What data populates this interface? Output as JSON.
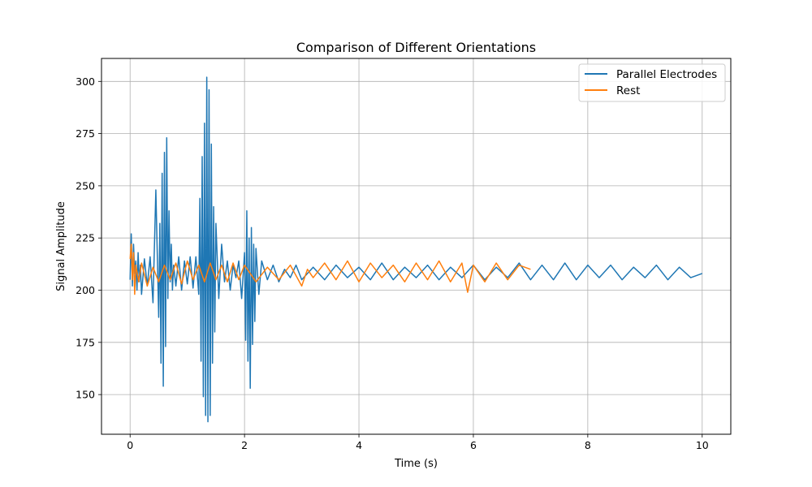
{
  "chart_data": {
    "type": "line",
    "title": "Comparison of Different Orientations",
    "xlabel": "Time (s)",
    "ylabel": "Signal Amplitude",
    "xlim": [
      -0.5,
      10.5
    ],
    "ylim": [
      131,
      311
    ],
    "xticks": [
      0,
      2,
      4,
      6,
      8,
      10
    ],
    "yticks": [
      150,
      175,
      200,
      225,
      250,
      275,
      300
    ],
    "grid": true,
    "legend_position": "top-right",
    "series": [
      {
        "name": "Parallel Electrodes",
        "color": "#1f77b4",
        "x": [
          0.0,
          0.02,
          0.04,
          0.06,
          0.08,
          0.1,
          0.12,
          0.14,
          0.16,
          0.18,
          0.2,
          0.25,
          0.3,
          0.35,
          0.4,
          0.45,
          0.5,
          0.52,
          0.54,
          0.56,
          0.58,
          0.6,
          0.62,
          0.64,
          0.66,
          0.68,
          0.7,
          0.72,
          0.74,
          0.76,
          0.8,
          0.85,
          0.9,
          0.95,
          1.0,
          1.05,
          1.1,
          1.15,
          1.2,
          1.22,
          1.24,
          1.26,
          1.28,
          1.3,
          1.32,
          1.34,
          1.36,
          1.38,
          1.4,
          1.42,
          1.44,
          1.46,
          1.48,
          1.5,
          1.55,
          1.6,
          1.65,
          1.7,
          1.75,
          1.8,
          1.85,
          1.9,
          1.95,
          2.0,
          2.02,
          2.04,
          2.06,
          2.08,
          2.1,
          2.12,
          2.14,
          2.16,
          2.18,
          2.2,
          2.25,
          2.3,
          2.4,
          2.5,
          2.6,
          2.7,
          2.8,
          2.9,
          3.0,
          3.2,
          3.4,
          3.6,
          3.8,
          4.0,
          4.2,
          4.4,
          4.6,
          4.8,
          5.0,
          5.2,
          5.4,
          5.6,
          5.8,
          6.0,
          6.2,
          6.4,
          6.6,
          6.8,
          7.0,
          7.2,
          7.4,
          7.6,
          7.8,
          8.0,
          8.2,
          8.4,
          8.6,
          8.8,
          9.0,
          9.2,
          9.4,
          9.6,
          9.8,
          10.0
        ],
        "values": [
          205,
          227,
          202,
          222,
          208,
          214,
          200,
          218,
          204,
          212,
          198,
          215,
          202,
          216,
          194,
          248,
          187,
          232,
          165,
          256,
          154,
          266,
          173,
          273,
          196,
          238,
          204,
          222,
          200,
          212,
          202,
          216,
          200,
          214,
          203,
          216,
          201,
          216,
          198,
          244,
          166,
          264,
          149,
          280,
          140,
          302,
          137,
          296,
          140,
          270,
          165,
          240,
          180,
          232,
          196,
          222,
          204,
          214,
          200,
          212,
          206,
          214,
          196,
          218,
          176,
          238,
          166,
          225,
          153,
          230,
          174,
          222,
          185,
          220,
          198,
          214,
          205,
          212,
          204,
          210,
          206,
          212,
          205,
          211,
          205,
          212,
          206,
          211,
          205,
          213,
          205,
          211,
          206,
          212,
          205,
          211,
          206,
          212,
          205,
          211,
          206,
          213,
          205,
          212,
          205,
          213,
          205,
          212,
          206,
          212,
          205,
          211,
          206,
          212,
          205,
          211,
          206,
          208
        ]
      },
      {
        "name": "Rest",
        "color": "#ff7f0e",
        "x": [
          0.0,
          0.02,
          0.04,
          0.06,
          0.08,
          0.1,
          0.15,
          0.2,
          0.3,
          0.4,
          0.5,
          0.6,
          0.7,
          0.8,
          0.9,
          1.0,
          1.1,
          1.2,
          1.3,
          1.4,
          1.5,
          1.6,
          1.7,
          1.8,
          1.9,
          2.0,
          2.2,
          2.4,
          2.6,
          2.8,
          3.0,
          3.1,
          3.2,
          3.4,
          3.6,
          3.8,
          4.0,
          4.2,
          4.4,
          4.6,
          4.8,
          5.0,
          5.2,
          5.4,
          5.6,
          5.8,
          5.9,
          6.0,
          6.2,
          6.4,
          6.6,
          6.8,
          7.0
        ],
        "values": [
          215,
          222,
          205,
          218,
          198,
          212,
          204,
          213,
          202,
          211,
          204,
          212,
          205,
          213,
          203,
          214,
          205,
          212,
          204,
          213,
          205,
          212,
          204,
          213,
          205,
          212,
          204,
          211,
          205,
          212,
          202,
          210,
          206,
          213,
          205,
          214,
          204,
          213,
          206,
          212,
          204,
          213,
          205,
          214,
          204,
          213,
          199,
          212,
          204,
          213,
          205,
          212,
          210
        ]
      }
    ]
  }
}
